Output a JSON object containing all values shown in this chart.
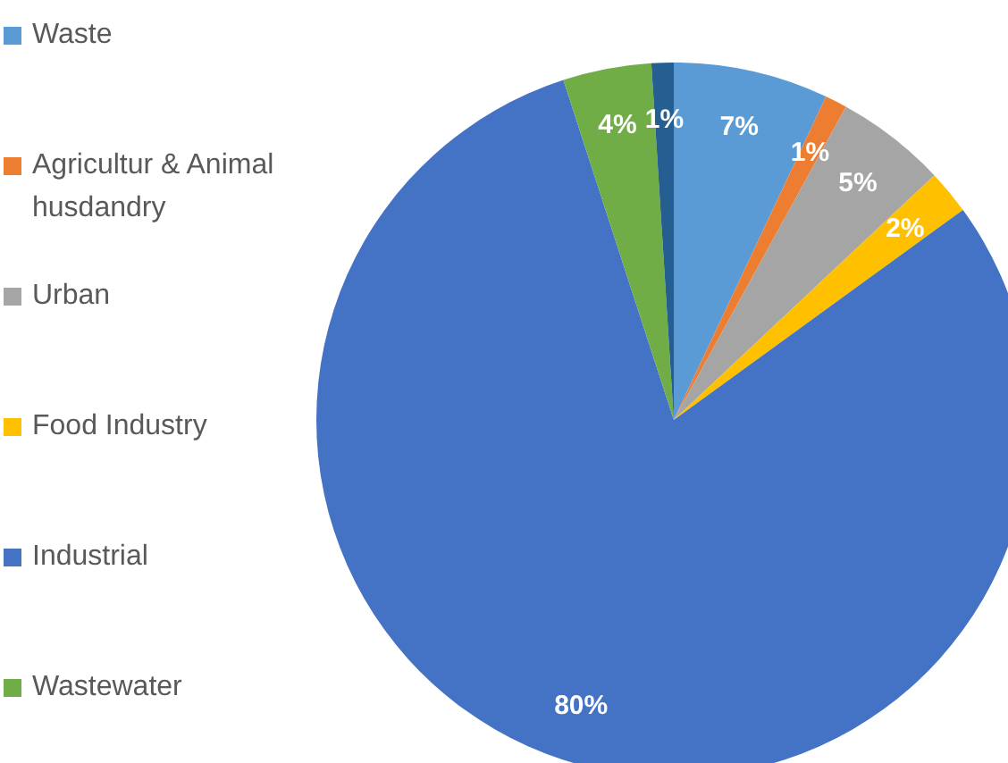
{
  "chart_data": {
    "type": "pie",
    "categories": [
      "Waste",
      "Agricultur & Animal husdandry",
      "Urban",
      "Food Industry",
      "Industrial",
      "Wastewater",
      null
    ],
    "values": [
      7,
      1,
      5,
      2,
      80,
      4,
      1
    ],
    "colors": [
      "#5b9bd5",
      "#ed7d31",
      "#a5a5a5",
      "#ffc000",
      "#4472c4",
      "#70ad47",
      "#255e91"
    ],
    "value_labels": [
      "7%",
      "1%",
      "5%",
      "2%",
      "80%",
      "4%",
      "1%"
    ],
    "legend": "left"
  }
}
